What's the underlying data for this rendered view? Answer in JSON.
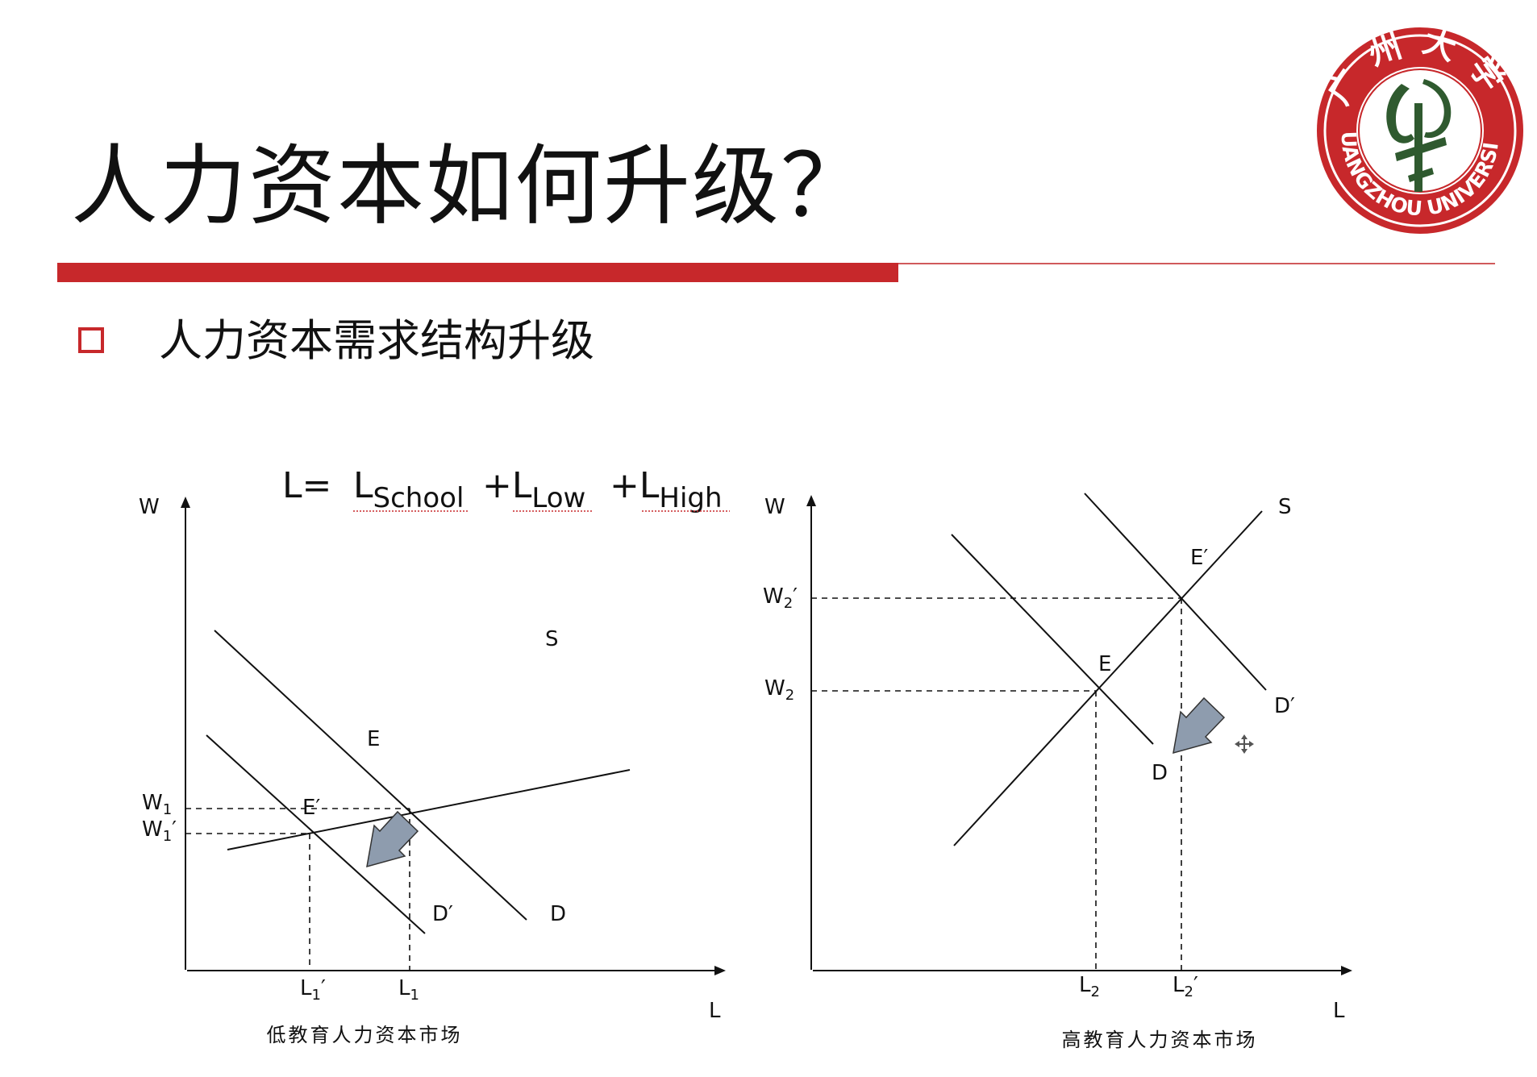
{
  "slide": {
    "title": "人力资本如何升级？",
    "bullet": "人力资本需求结构升级",
    "accent_color": "#c7282b"
  },
  "logo": {
    "text_top": "广州大学",
    "text_bottom": "GUANGZHOU UNIVERSITY",
    "color": "#c7282b",
    "emblem_color": "#2f5a2f"
  },
  "formula": {
    "lhs": "L=",
    "terms": [
      {
        "base": "L",
        "sub": "School"
      },
      {
        "base": "+L",
        "sub": "Low"
      },
      {
        "base": "+L",
        "sub": "High"
      }
    ]
  },
  "left_chart": {
    "y_axis": "W",
    "x_axis": "L",
    "caption": "低教育人力资本市场",
    "labels": {
      "S": "S",
      "D": "D",
      "D_prime": "D′",
      "E": "E",
      "E_prime": "E′",
      "W1": "W",
      "W1_sub": "1",
      "W1p": "W",
      "W1p_sub": "1",
      "W1p_prime": "′",
      "L1": "L",
      "L1_sub": "1",
      "L1p": "L",
      "L1p_sub": "1",
      "L1p_prime": "′"
    },
    "arrow_direction": "down-left"
  },
  "right_chart": {
    "y_axis": "W",
    "x_axis": "L",
    "caption": "高教育人力资本市场",
    "labels": {
      "S": "S",
      "D": "D",
      "D_prime": "D′",
      "E": "E",
      "E_prime": "E′",
      "W2": "W",
      "W2_sub": "2",
      "W2p": "W",
      "W2p_sub": "2",
      "W2p_prime": "′",
      "L2": "L",
      "L2_sub": "2",
      "L2p": "L",
      "L2p_sub": "2",
      "L2p_prime": "′"
    },
    "arrow_direction": "up-right"
  }
}
